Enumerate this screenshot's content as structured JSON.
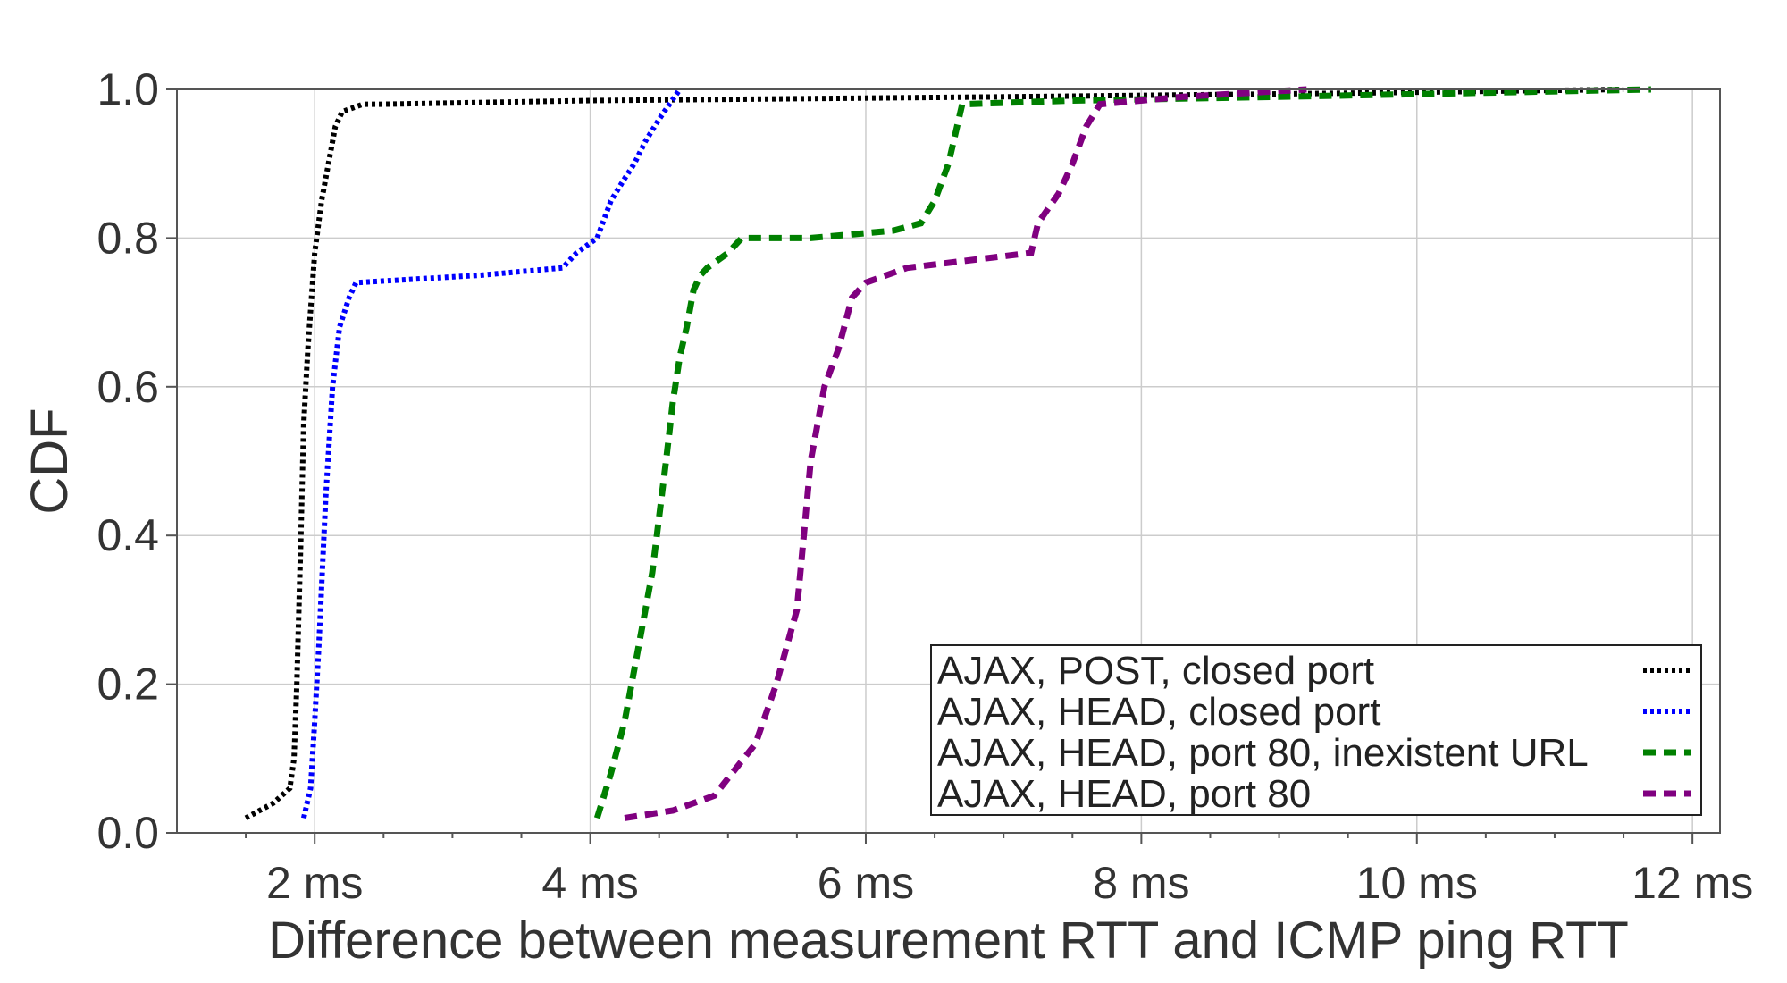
{
  "chart_data": {
    "type": "line",
    "title": "",
    "xlabel": "Difference between measurement RTT and ICMP ping RTT",
    "ylabel": "CDF",
    "xlim": [
      1,
      12.2
    ],
    "ylim": [
      0,
      1
    ],
    "grid": true,
    "legend_position": "bottom-right",
    "x_ticks": [
      2,
      4,
      6,
      8,
      10,
      12
    ],
    "x_tick_labels": [
      "2 ms",
      "4 ms",
      "6 ms",
      "8 ms",
      "10 ms",
      "12 ms"
    ],
    "y_ticks": [
      0,
      0.2,
      0.4,
      0.6,
      0.8,
      1.0
    ],
    "y_tick_labels": [
      "0.0",
      "0.2",
      "0.4",
      "0.6",
      "0.8",
      "1.0"
    ],
    "series": [
      {
        "name": "AJAX, POST, closed port",
        "color": "#000000",
        "style": "dotted",
        "x": [
          1.5,
          1.7,
          1.82,
          1.85,
          1.87,
          1.9,
          1.92,
          1.95,
          2.0,
          2.05,
          2.1,
          2.15,
          2.2,
          2.35,
          2.5,
          4.0,
          7.0,
          9.5,
          11.5
        ],
        "y": [
          0.02,
          0.04,
          0.06,
          0.1,
          0.2,
          0.4,
          0.55,
          0.65,
          0.78,
          0.85,
          0.9,
          0.95,
          0.97,
          0.98,
          0.98,
          0.985,
          0.99,
          0.995,
          1.0
        ]
      },
      {
        "name": "AJAX, HEAD, closed port",
        "color": "#0000ff",
        "style": "dotted",
        "x": [
          1.92,
          1.97,
          2.0,
          2.03,
          2.08,
          2.13,
          2.18,
          2.25,
          2.3,
          3.2,
          3.8,
          3.9,
          4.05,
          4.15,
          4.25,
          4.32,
          4.4,
          4.5,
          4.65
        ],
        "y": [
          0.02,
          0.06,
          0.15,
          0.25,
          0.45,
          0.6,
          0.68,
          0.72,
          0.74,
          0.75,
          0.76,
          0.78,
          0.8,
          0.85,
          0.88,
          0.9,
          0.93,
          0.96,
          1.0
        ]
      },
      {
        "name": "AJAX, HEAD, port 80, inexistent URL",
        "color": "#008000",
        "style": "dashed",
        "x": [
          4.05,
          4.15,
          4.25,
          4.35,
          4.45,
          4.55,
          4.6,
          4.65,
          4.7,
          4.75,
          4.8,
          4.85,
          5.0,
          5.1,
          5.6,
          6.2,
          6.4,
          6.5,
          6.6,
          6.7,
          7.5,
          9.0,
          11.7
        ],
        "y": [
          0.02,
          0.08,
          0.15,
          0.25,
          0.35,
          0.5,
          0.58,
          0.64,
          0.68,
          0.73,
          0.75,
          0.76,
          0.78,
          0.8,
          0.8,
          0.81,
          0.82,
          0.85,
          0.9,
          0.98,
          0.985,
          0.99,
          1.0
        ]
      },
      {
        "name": "AJAX, HEAD, port 80",
        "color": "#800080",
        "style": "dashed",
        "x": [
          4.25,
          4.6,
          4.9,
          5.2,
          5.35,
          5.5,
          5.55,
          5.6,
          5.7,
          5.8,
          5.9,
          6.0,
          6.3,
          7.2,
          7.25,
          7.4,
          7.5,
          7.6,
          7.7,
          8.3,
          9.2
        ],
        "y": [
          0.02,
          0.03,
          0.05,
          0.12,
          0.2,
          0.3,
          0.4,
          0.5,
          0.6,
          0.65,
          0.72,
          0.74,
          0.76,
          0.78,
          0.82,
          0.86,
          0.9,
          0.95,
          0.98,
          0.99,
          1.0
        ]
      }
    ]
  }
}
